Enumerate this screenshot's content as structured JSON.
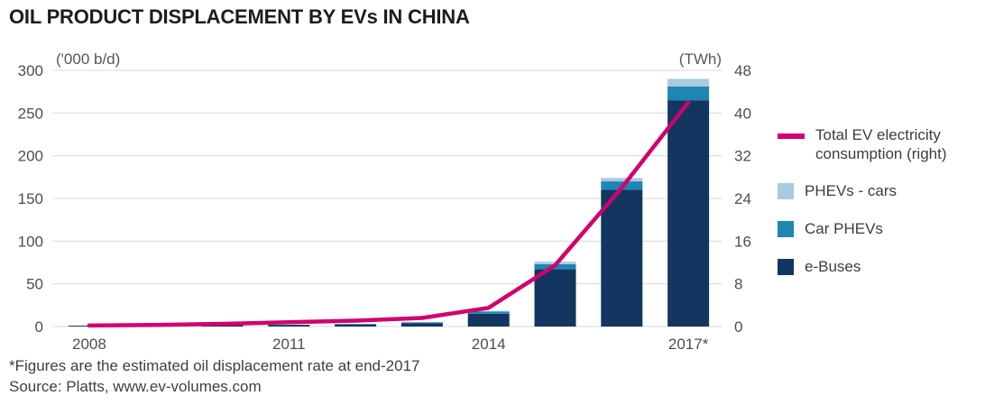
{
  "title": "OIL PRODUCT DISPLACEMENT BY EVs IN CHINA",
  "axis_units": {
    "left": "('000 b/d)",
    "right": "(TWh)"
  },
  "chart_data": {
    "type": "bar",
    "subtype": "stacked-bars-with-line",
    "x": [
      2008,
      2009,
      2010,
      2011,
      2012,
      2013,
      2014,
      2015,
      2016,
      2017
    ],
    "x_tick_labels": [
      "2008",
      "2011",
      "2014",
      "2017*"
    ],
    "x_tick_slots": [
      0,
      3,
      6,
      9
    ],
    "left_axis": {
      "label": "('000 b/d)",
      "range": [
        0,
        300
      ],
      "ticks": [
        0,
        50,
        100,
        150,
        200,
        250,
        300
      ]
    },
    "right_axis": {
      "label": "(TWh)",
      "range": [
        0,
        48
      ],
      "ticks": [
        0,
        8,
        16,
        24,
        32,
        40,
        48
      ]
    },
    "grid": "horizontal",
    "series": [
      {
        "name": "e-Buses",
        "type": "bar",
        "axis": "left",
        "color": "#12365f",
        "values": [
          1,
          1,
          1.5,
          2,
          2.5,
          4,
          15,
          67,
          160,
          265
        ]
      },
      {
        "name": "Car PHEVs",
        "type": "bar",
        "axis": "left",
        "color": "#1f85b5",
        "values": [
          0,
          0,
          0,
          0,
          0.5,
          1,
          2.5,
          6,
          10,
          16
        ]
      },
      {
        "name": "PHEVs - cars",
        "type": "bar",
        "axis": "left",
        "color": "#a9cadf",
        "values": [
          0,
          0,
          0,
          0,
          0,
          0.3,
          0.8,
          3,
          4,
          9
        ]
      },
      {
        "name": "Total EV electricity consumption (right)",
        "type": "line",
        "axis": "right",
        "color": "#d0006e",
        "values": [
          0.2,
          0.3,
          0.5,
          0.8,
          1.1,
          1.6,
          3.5,
          11.5,
          26,
          42
        ]
      }
    ],
    "legend_position": "right"
  },
  "legend": {
    "items": [
      {
        "label": "Total EV electricity consumption (right)",
        "swatch": "line",
        "color": "#d0006e"
      },
      {
        "label": "PHEVs - cars",
        "swatch": "square",
        "color": "#a9cadf"
      },
      {
        "label": "Car PHEVs",
        "swatch": "square",
        "color": "#1f85b5"
      },
      {
        "label": "e-Buses",
        "swatch": "square",
        "color": "#12365f"
      }
    ]
  },
  "footnotes": {
    "note": "*Figures are the estimated oil displacement rate at end-2017",
    "source": "Source: Platts, www.ev-volumes.com"
  },
  "colors": {
    "grid": "#d8d9da",
    "axis_text": "#4d4e52",
    "title_text": "#1d1d1f"
  }
}
